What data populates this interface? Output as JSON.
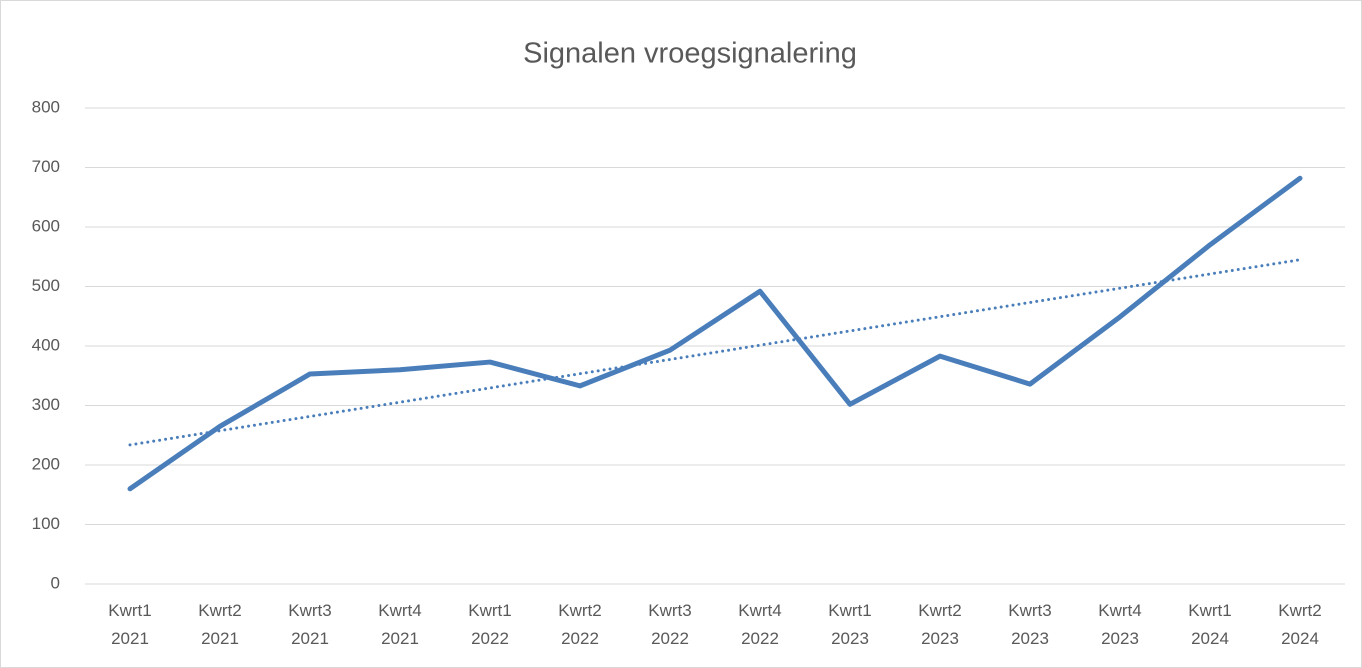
{
  "chart_data": {
    "type": "line",
    "title": "Signalen vroegsignalering",
    "categories": [
      [
        "Kwrt1",
        "2021"
      ],
      [
        "Kwrt2",
        "2021"
      ],
      [
        "Kwrt3",
        "2021"
      ],
      [
        "Kwrt4",
        "2021"
      ],
      [
        "Kwrt1",
        "2022"
      ],
      [
        "Kwrt2",
        "2022"
      ],
      [
        "Kwrt3",
        "2022"
      ],
      [
        "Kwrt4",
        "2022"
      ],
      [
        "Kwrt1",
        "2023"
      ],
      [
        "Kwrt2",
        "2023"
      ],
      [
        "Kwrt3",
        "2023"
      ],
      [
        "Kwrt4",
        "2023"
      ],
      [
        "Kwrt1",
        "2024"
      ],
      [
        "Kwrt2",
        "2024"
      ]
    ],
    "values": [
      160,
      265,
      353,
      360,
      373,
      333,
      393,
      492,
      302,
      383,
      336,
      449,
      570,
      682
    ],
    "color": "#4a7ebb",
    "trendline": true,
    "ylim": [
      0,
      800
    ],
    "yticks": [
      0,
      100,
      200,
      300,
      400,
      500,
      600,
      700,
      800
    ],
    "grid": true
  }
}
